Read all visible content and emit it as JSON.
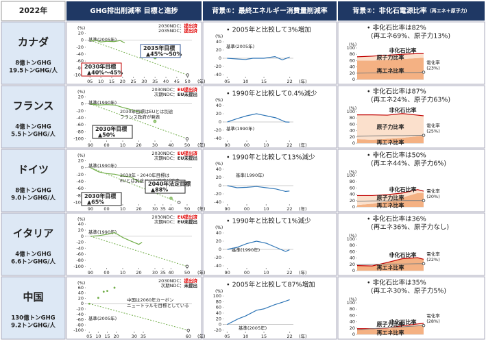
{
  "header": {
    "year": "2022年",
    "cols": [
      "GHG排出削減率 目標と進捗",
      "背景①：最終エネルギー消費量削減率",
      "背景②：非化石電源比率"
    ],
    "col3_sub": "（再エネ＋原子力）"
  },
  "units": {
    "y": "(%)",
    "x": "(年)"
  },
  "rows": [
    {
      "country": "カナダ",
      "total": "8億トンGHG",
      "per": "19.5トンGHG/人",
      "ghg": {
        "xlim": [
          2003,
          2052
        ],
        "ylim": [
          -105,
          25
        ],
        "xticks": [
          {
            "value": 2005,
            "label": "05"
          },
          {
            "value": 2010,
            "label": "10"
          },
          {
            "value": 2015,
            "label": "15"
          },
          {
            "value": 2020,
            "label": "20"
          },
          {
            "value": 2025,
            "label": "25"
          },
          {
            "value": 2030,
            "label": "30"
          },
          {
            "value": 2035,
            "label": "35"
          },
          {
            "value": 2040,
            "label": "40"
          },
          {
            "value": 2045,
            "label": "45"
          },
          {
            "value": 2050,
            "label": "50"
          }
        ],
        "yticks": [
          20,
          0,
          -20,
          -40,
          -60,
          -80,
          -100
        ],
        "ndc": [
          [
            "2030NDC：",
            "提出済"
          ],
          [
            "2035NDC：",
            "提出済"
          ]
        ],
        "base": "基準(2005年)",
        "actual": {
          "x": [
            2005,
            2008,
            2010,
            2013,
            2016,
            2019,
            2021
          ],
          "values": [
            0,
            -1,
            -5,
            -3,
            -4,
            -1,
            -8
          ]
        },
        "target": {
          "x": [
            2005,
            2050
          ],
          "values": [
            0,
            -100
          ]
        },
        "goals": [
          {
            "title": "2030年目標",
            "value": "▲40%～45%",
            "x": 2030,
            "values": [
              -40,
              -45
            ]
          },
          {
            "title": "2035年目標",
            "value": "▲45%～50%",
            "x": 2035,
            "values": [
              -45,
              -50
            ]
          }
        ]
      },
      "energy": {
        "note": "• 2005年と比較して3%増加",
        "base": "基準(2005年)",
        "xlim": [
          2004,
          2023
        ],
        "ylim": [
          -45,
          45
        ],
        "xticks": [
          {
            "value": 2005,
            "label": "05"
          },
          {
            "value": 2010,
            "label": "10"
          },
          {
            "value": 2015,
            "label": "15"
          },
          {
            "value": 2022,
            "label": "22"
          }
        ],
        "yticks": [
          40,
          20,
          0,
          -20,
          -40
        ],
        "x": [
          2005,
          2008,
          2010,
          2012,
          2015,
          2018,
          2020,
          2022
        ],
        "values": [
          0,
          -2,
          -3,
          0,
          0,
          4,
          -4,
          3
        ]
      },
      "power": {
        "note": "• 非化石比率は82%",
        "sub": "(再エネ69%、原子力13%)",
        "ylim": [
          0,
          100
        ],
        "yticks": [
          0,
          20,
          40,
          60,
          80,
          100
        ],
        "xlim": [
          2000,
          2022
        ],
        "x": [
          2000,
          2005,
          2010,
          2015,
          2020,
          2022
        ],
        "renewable": [
          60,
          60,
          62,
          65,
          68,
          69
        ],
        "nuclear": [
          12,
          14,
          15,
          15,
          14,
          13
        ],
        "elec": [
          20,
          21,
          21,
          22,
          22,
          23
        ],
        "labels": {
          "nonfossil": "非化石比率",
          "nuclear": "原子力比率",
          "renewable": "再エネ比率",
          "elec": "電化率",
          "elec_value": "(23%)"
        }
      }
    },
    {
      "country": "フランス",
      "total": "4億トンGHG",
      "per": "5.5トンGHG/人",
      "ghg": {
        "xlim": [
          1987,
          2053
        ],
        "ylim": [
          -105,
          25
        ],
        "xticks": [
          {
            "value": 1990,
            "label": "90"
          },
          {
            "value": 2000,
            "label": "00"
          },
          {
            "value": 2010,
            "label": "10"
          },
          {
            "value": 2020,
            "label": "20"
          },
          {
            "value": 2030,
            "label": "30"
          },
          {
            "value": 2040,
            "label": "40"
          },
          {
            "value": 2050,
            "label": "50"
          }
        ],
        "yticks": [
          20,
          0,
          -20,
          -40,
          -60,
          -80,
          -100
        ],
        "ndc": [
          [
            "2030NDC：",
            "EU提出済"
          ],
          [
            "次期NDC：",
            "EU未提出"
          ]
        ],
        "base": "基準(1990年)",
        "note": [
          "2030年目標はEUとは別途",
          "フランス政府が発表"
        ],
        "actual": {
          "x": [
            1990,
            1995,
            2000,
            2005,
            2010,
            2015,
            2020,
            2022
          ],
          "values": [
            0,
            -3,
            -2,
            -3,
            -10,
            -16,
            -23,
            -25
          ]
        },
        "target": {
          "x": [
            1990,
            2050
          ],
          "values": [
            0,
            -100
          ]
        },
        "goals": [
          {
            "title": "2030年目標",
            "value": "▲50%",
            "x": 2030,
            "values": [
              -50
            ]
          }
        ]
      },
      "energy": {
        "note": "• 1990年と比較して0.4%減少",
        "base": "基準(1990年)",
        "xlim": [
          1988,
          2024
        ],
        "ylim": [
          -45,
          45
        ],
        "xticks": [
          {
            "value": 1990,
            "label": "90"
          },
          {
            "value": 2000,
            "label": "00"
          },
          {
            "value": 2010,
            "label": "10"
          },
          {
            "value": 2022,
            "label": "22"
          }
        ],
        "yticks": [
          40,
          20,
          0,
          -20,
          -40
        ],
        "x": [
          1990,
          1995,
          2000,
          2005,
          2010,
          2015,
          2020,
          2022
        ],
        "values": [
          0,
          8,
          15,
          20,
          15,
          10,
          0,
          -0.4
        ]
      },
      "power": {
        "note": "• 非化石比率は87%",
        "sub": "(再エネ24%、原子力63%)",
        "ylim": [
          0,
          100
        ],
        "yticks": [
          0,
          20,
          40,
          60,
          80,
          100
        ],
        "xlim": [
          2000,
          2022
        ],
        "x": [
          2000,
          2005,
          2010,
          2015,
          2020,
          2022
        ],
        "renewable": [
          13,
          11,
          14,
          17,
          22,
          24
        ],
        "nuclear": [
          77,
          79,
          75,
          77,
          67,
          63
        ],
        "elec": [
          22,
          23,
          24,
          24,
          25,
          25
        ],
        "labels": {
          "nonfossil": "非化石比率",
          "nuclear": "原子力比率",
          "renewable": "再エネ比率",
          "elec": "電化率",
          "elec_value": "(25%)"
        }
      }
    },
    {
      "country": "ドイツ",
      "total": "8億トンGHG",
      "per": "9.0トンGHG/人",
      "ghg": {
        "xlim": [
          1987,
          2053
        ],
        "ylim": [
          -105,
          25
        ],
        "xticks": [
          {
            "value": 1990,
            "label": "90"
          },
          {
            "value": 2000,
            "label": "00"
          },
          {
            "value": 2010,
            "label": "10"
          },
          {
            "value": 2020,
            "label": "20"
          },
          {
            "value": 2030,
            "label": "30"
          },
          {
            "value": 2035,
            "label": "35"
          },
          {
            "value": 2040,
            "label": "40"
          },
          {
            "value": 2050,
            "label": "50"
          }
        ],
        "yticks": [
          20,
          0,
          -20,
          -40,
          -60,
          -80,
          -100
        ],
        "ndc": [
          [
            "2030NDC：",
            "EU提出済"
          ],
          [
            "次期NDC：",
            "EU未提出"
          ]
        ],
        "base": "基準(1990年)",
        "note": [
          "2030年・2040年目標は",
          "EUとは別途ドイツ政府が発表"
        ],
        "actual": {
          "x": [
            1990,
            1995,
            2000,
            2005,
            2010,
            2015,
            2020,
            2022
          ],
          "values": [
            0,
            -12,
            -17,
            -19,
            -24,
            -27,
            -40,
            -40
          ]
        },
        "target": {
          "x": [
            1990,
            2045
          ],
          "values": [
            0,
            -100
          ]
        },
        "goals": [
          {
            "title": "2030年目標",
            "value": "▲65%",
            "x": 2030,
            "values": [
              -65
            ]
          },
          {
            "title": "2040年法定目標",
            "value": "▲88%",
            "x": 2040,
            "values": [
              -88
            ]
          }
        ]
      },
      "energy": {
        "note": "• 1990年と比較して13%減少",
        "base": "基準(1990年)",
        "xlim": [
          1988,
          2024
        ],
        "ylim": [
          -45,
          45
        ],
        "xticks": [
          {
            "value": 1990,
            "label": "90"
          },
          {
            "value": 2000,
            "label": "00"
          },
          {
            "value": 2010,
            "label": "10"
          },
          {
            "value": 2022,
            "label": "22"
          }
        ],
        "yticks": [
          40,
          20,
          0,
          -20,
          -40
        ],
        "x": [
          1990,
          1995,
          2000,
          2005,
          2010,
          2015,
          2020,
          2022
        ],
        "values": [
          0,
          -5,
          -4,
          -2,
          -5,
          -8,
          -14,
          -13
        ]
      },
      "power": {
        "note": "• 非化石比率は50%",
        "sub": "(再エネ44%、原子力6%)",
        "ylim": [
          0,
          100
        ],
        "yticks": [
          0,
          20,
          40,
          60,
          80,
          100
        ],
        "xlim": [
          2000,
          2022
        ],
        "x": [
          2000,
          2005,
          2010,
          2015,
          2020,
          2022
        ],
        "renewable": [
          6,
          10,
          17,
          30,
          44,
          44
        ],
        "nuclear": [
          30,
          26,
          22,
          14,
          11,
          6
        ],
        "elec": [
          18,
          19,
          19,
          20,
          20,
          20
        ],
        "labels": {
          "nonfossil": "非化石比率",
          "nuclear": "原子力比率",
          "renewable": "再エネ比率",
          "elec": "電化率",
          "elec_value": "(20%)"
        }
      }
    },
    {
      "country": "イタリア",
      "total": "4億トンGHG",
      "per": "6.6トンGHG/人",
      "ghg": {
        "xlim": [
          1987,
          2053
        ],
        "ylim": [
          -105,
          45
        ],
        "xticks": [
          {
            "value": 1990,
            "label": "90"
          },
          {
            "value": 2000,
            "label": "00"
          },
          {
            "value": 2010,
            "label": "10"
          },
          {
            "value": 2020,
            "label": "20"
          },
          {
            "value": 2030,
            "label": "30"
          },
          {
            "value": 2035,
            "label": "35"
          },
          {
            "value": 2040,
            "label": "40"
          },
          {
            "value": 2050,
            "label": "50"
          }
        ],
        "yticks": [
          40,
          20,
          0,
          -20,
          -40,
          -60,
          -80,
          -100
        ],
        "ndc": [
          [
            "2030NDC：",
            "EU提出済"
          ],
          [
            "次期NDC：",
            "EU未提出"
          ]
        ],
        "base": "基準(1990年)",
        "actual": {
          "x": [
            1990,
            1995,
            2000,
            2005,
            2010,
            2015,
            2020,
            2022
          ],
          "values": [
            0,
            2,
            6,
            12,
            -4,
            -16,
            -27,
            -20
          ]
        },
        "target": {
          "x": [
            1990,
            2050
          ],
          "values": [
            0,
            -100
          ]
        },
        "goals": []
      },
      "energy": {
        "note": "• 1990年と比較して1%減少",
        "base": "基準(1990年)",
        "xlim": [
          1988,
          2024
        ],
        "ylim": [
          -45,
          45
        ],
        "xticks": [
          {
            "value": 1990,
            "label": "90"
          },
          {
            "value": 2000,
            "label": "00"
          },
          {
            "value": 2010,
            "label": "10"
          },
          {
            "value": 2022,
            "label": "22"
          }
        ],
        "yticks": [
          40,
          20,
          0,
          -20,
          -40
        ],
        "x": [
          1990,
          1995,
          2000,
          2005,
          2010,
          2015,
          2020,
          2022
        ],
        "values": [
          0,
          5,
          14,
          20,
          15,
          5,
          -5,
          -1
        ]
      },
      "power": {
        "note": "• 非化石比率は36%",
        "sub": "(再エネ36%、原子力なし)",
        "ylim": [
          0,
          100
        ],
        "yticks": [
          0,
          20,
          40,
          60,
          80,
          100
        ],
        "xlim": [
          2000,
          2022
        ],
        "x": [
          2000,
          2005,
          2010,
          2015,
          2020,
          2022
        ],
        "renewable": [
          16,
          15,
          26,
          38,
          41,
          36
        ],
        "elec": [
          19,
          20,
          21,
          21,
          22,
          22
        ],
        "labels": {
          "nonfossil": "非化石比率",
          "renewable": "再エネ比率",
          "elec": "電化率",
          "elec_value": "(22%)"
        }
      }
    },
    {
      "country": "中国",
      "total": "130億トンGHG",
      "per": "9.2トンGHG/人",
      "ghg": {
        "xlim": [
          2003,
          2062
        ],
        "ylim": [
          -105,
          65
        ],
        "xticks": [
          {
            "value": 2005,
            "label": "05"
          },
          {
            "value": 2010,
            "label": "10"
          },
          {
            "value": 2015,
            "label": "15"
          },
          {
            "value": 2020,
            "label": "20"
          },
          {
            "value": 2030,
            "label": "30"
          },
          {
            "value": 2035,
            "label": "35"
          },
          {
            "value": 2060,
            "label": "60"
          }
        ],
        "yticks": [
          60,
          40,
          20,
          0,
          -20,
          -40,
          -60,
          -80,
          -100
        ],
        "ndc": [
          [
            "2030NDC：",
            "提出済"
          ],
          [
            "次期NDC：",
            "未提出"
          ]
        ],
        "base": "基準(2005年)",
        "note": [
          "中国は2060年カーボン",
          "ニュートラルを目標としている"
        ],
        "dots": true,
        "actual": {
          "x": [
            2005,
            2010,
            2013,
            2015,
            2019
          ],
          "values": [
            0,
            22,
            45,
            48,
            60
          ]
        },
        "target": {
          "x": [
            2005,
            2060
          ],
          "values": [
            0,
            -100
          ]
        },
        "goals": []
      },
      "energy": {
        "note": "• 2005年と比較して87%増加",
        "base": "基準(2005年)",
        "xlim": [
          2004,
          2023
        ],
        "ylim": [
          -25,
          105
        ],
        "xticks": [
          {
            "value": 2005,
            "label": "05"
          },
          {
            "value": 2010,
            "label": "10"
          },
          {
            "value": 2015,
            "label": "15"
          },
          {
            "value": 2022,
            "label": "22"
          }
        ],
        "yticks": [
          100,
          80,
          60,
          40,
          20,
          0,
          -20
        ],
        "x": [
          2005,
          2008,
          2010,
          2013,
          2015,
          2018,
          2020,
          2022
        ],
        "values": [
          0,
          20,
          30,
          50,
          55,
          70,
          78,
          87
        ]
      },
      "power": {
        "note": "• 非化石比率は35%",
        "sub": "(再エネ30%、原子力5%)",
        "ylim": [
          0,
          100
        ],
        "yticks": [
          0,
          20,
          40,
          60,
          80,
          100
        ],
        "xlim": [
          2000,
          2022
        ],
        "x": [
          2000,
          2005,
          2010,
          2015,
          2020,
          2022
        ],
        "renewable": [
          17,
          16,
          18,
          24,
          28,
          30
        ],
        "nuclear": [
          1,
          2,
          2,
          3,
          5,
          5
        ],
        "elec": [
          14,
          18,
          21,
          24,
          27,
          28
        ],
        "labels": {
          "nonfossil": "非化石比率",
          "nuclear": "原子力比率",
          "renewable": "再エネ比率",
          "elec": "電化率",
          "elec_value": "(28%)"
        }
      }
    }
  ]
}
